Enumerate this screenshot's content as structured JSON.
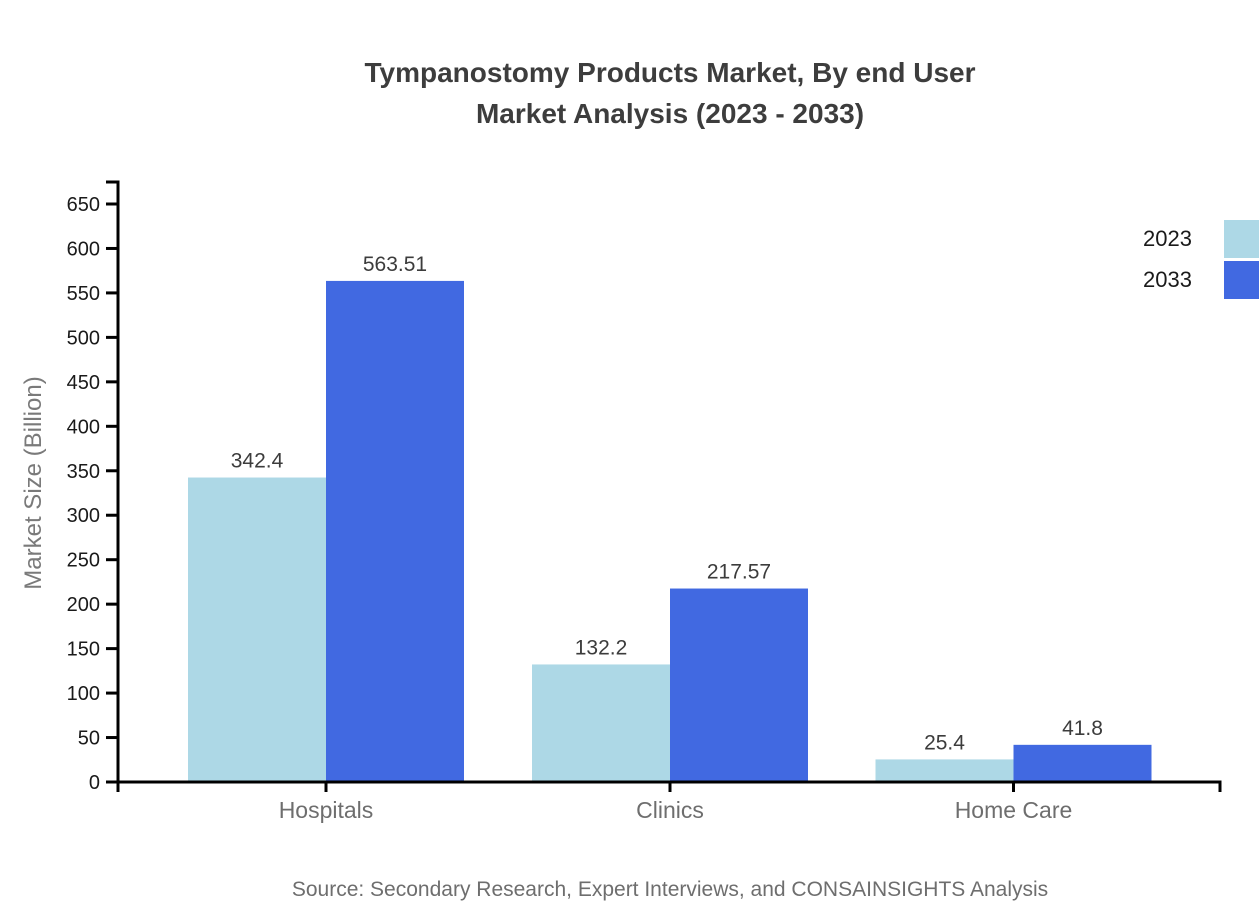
{
  "title": {
    "line1": "Tympanostomy Products Market, By end User",
    "line2": "Market Analysis (2023 - 2033)"
  },
  "source": "Source: Secondary Research, Expert Interviews, and CONSAINSIGHTS Analysis",
  "chart_data": {
    "type": "bar",
    "categories": [
      "Hospitals",
      "Clinics",
      "Home Care"
    ],
    "series": [
      {
        "name": "2023",
        "color": "#ADD8E6",
        "values": [
          342.4,
          132.2,
          25.4
        ],
        "labels": [
          "342.4",
          "132.2",
          "25.4"
        ]
      },
      {
        "name": "2033",
        "color": "#4169E1",
        "values": [
          563.51,
          217.57,
          41.8
        ],
        "labels": [
          "563.51",
          "217.57",
          "41.8"
        ]
      }
    ],
    "title": "Tympanostomy Products Market, By end User Market Analysis (2023 - 2033)",
    "xlabel": "",
    "ylabel": "Market Size (Billion)",
    "ylim": [
      0,
      650
    ],
    "ytick_step": 50,
    "grid": false,
    "legend_position": "top-right"
  }
}
